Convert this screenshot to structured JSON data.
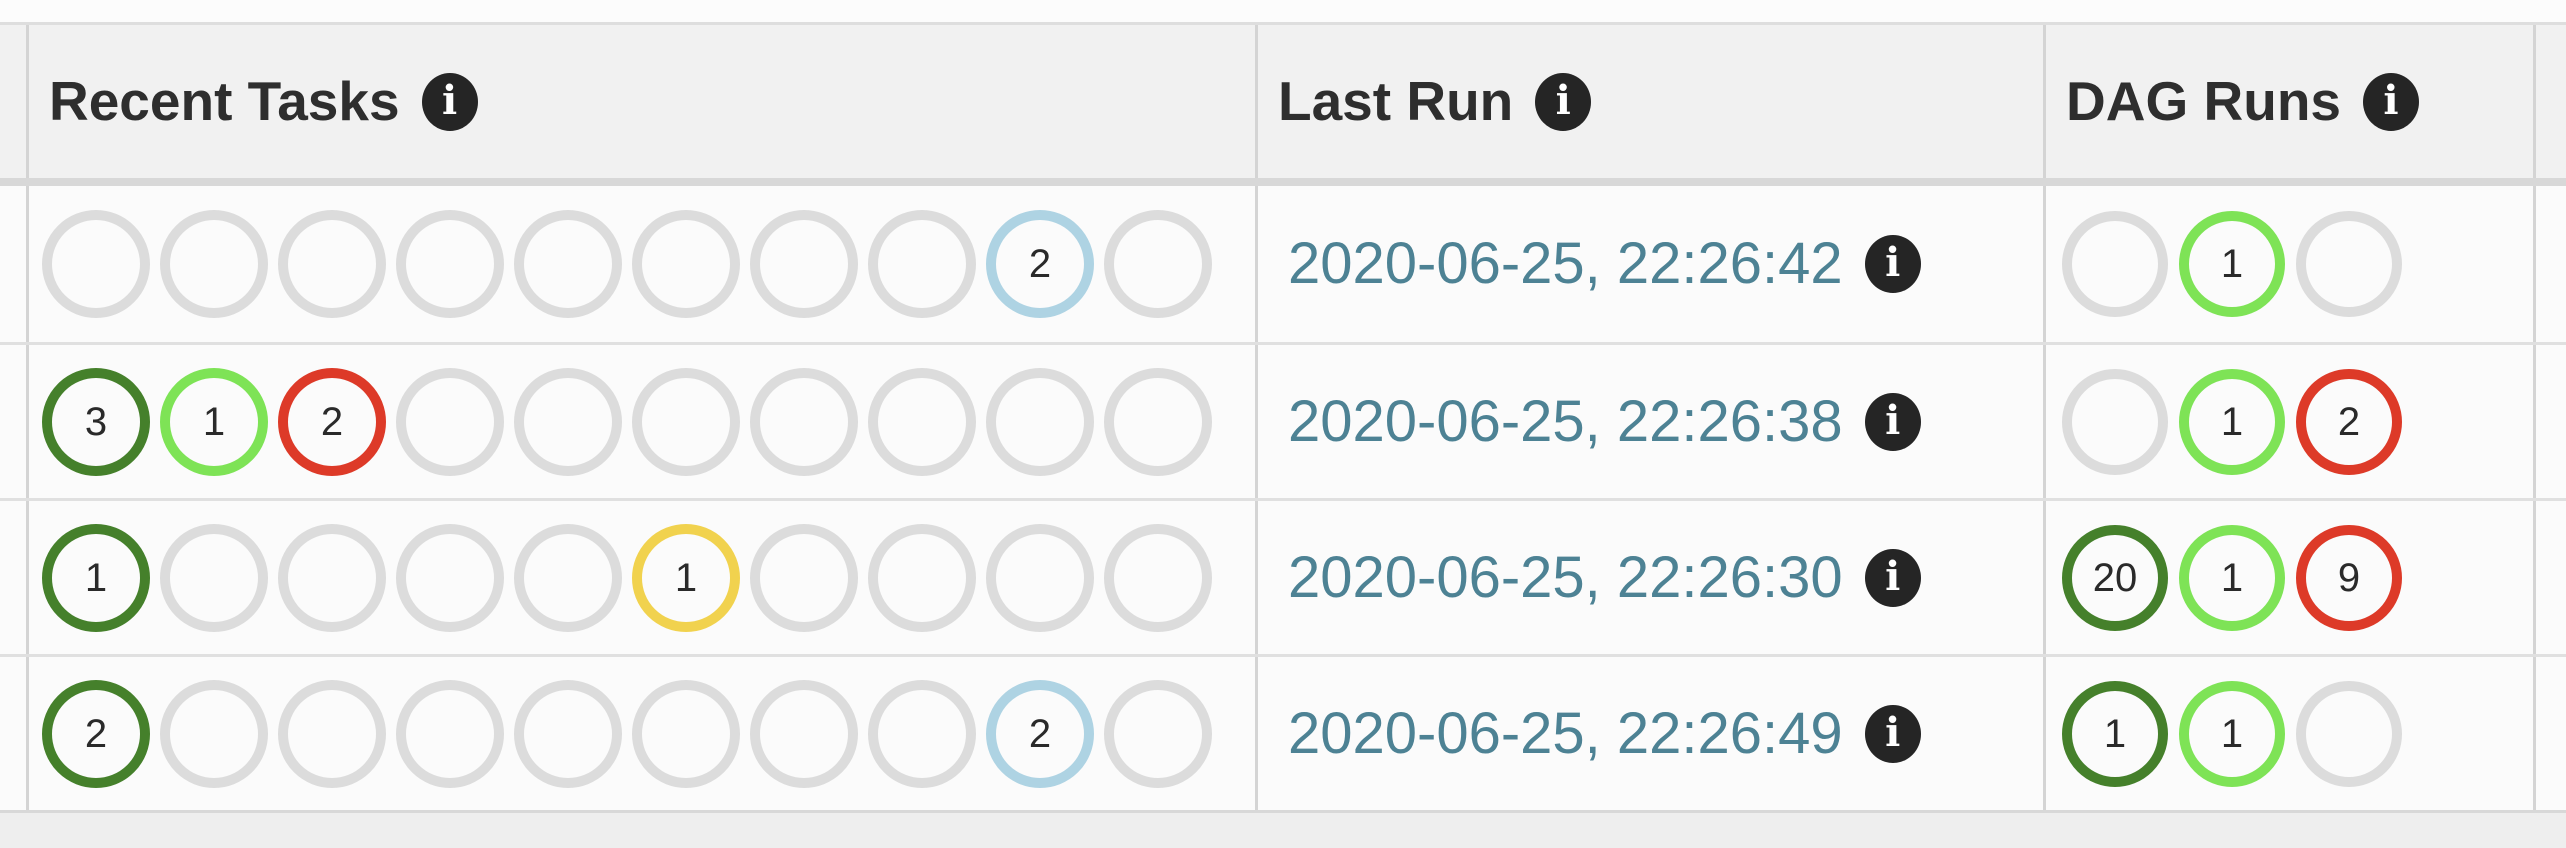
{
  "header": {
    "columns": [
      {
        "key": "recent_tasks",
        "label": "Recent Tasks"
      },
      {
        "key": "last_run",
        "label": "Last Run"
      },
      {
        "key": "dag_runs",
        "label": "DAG Runs"
      }
    ]
  },
  "icons": {
    "info": {
      "name": "info-circle-icon",
      "glyph": "i"
    }
  },
  "ui": {
    "link_color": "#4d8294",
    "header_bg": "#f1f1f1",
    "row_bg": "#fbfbfb",
    "border_color": "#d4d4d4",
    "info_badge_bg": "#252525"
  },
  "state_colors": {
    "empty": "#dcdcdc",
    "success": "#45802b",
    "running": "#7ee356",
    "failed": "#dd3a28",
    "up_for_retry": "#f1d24e",
    "none": "#aed3e3"
  },
  "rows": [
    {
      "recent_tasks": [
        {
          "state": "empty",
          "count": ""
        },
        {
          "state": "empty",
          "count": ""
        },
        {
          "state": "empty",
          "count": ""
        },
        {
          "state": "empty",
          "count": ""
        },
        {
          "state": "empty",
          "count": ""
        },
        {
          "state": "empty",
          "count": ""
        },
        {
          "state": "empty",
          "count": ""
        },
        {
          "state": "empty",
          "count": ""
        },
        {
          "state": "none",
          "count": "2"
        },
        {
          "state": "empty",
          "count": ""
        }
      ],
      "last_run": "2020-06-25, 22:26:42",
      "dag_runs": [
        {
          "state": "empty",
          "count": ""
        },
        {
          "state": "running",
          "count": "1"
        },
        {
          "state": "empty",
          "count": ""
        }
      ]
    },
    {
      "recent_tasks": [
        {
          "state": "success",
          "count": "3"
        },
        {
          "state": "running",
          "count": "1"
        },
        {
          "state": "failed",
          "count": "2"
        },
        {
          "state": "empty",
          "count": ""
        },
        {
          "state": "empty",
          "count": ""
        },
        {
          "state": "empty",
          "count": ""
        },
        {
          "state": "empty",
          "count": ""
        },
        {
          "state": "empty",
          "count": ""
        },
        {
          "state": "empty",
          "count": ""
        },
        {
          "state": "empty",
          "count": ""
        }
      ],
      "last_run": "2020-06-25, 22:26:38",
      "dag_runs": [
        {
          "state": "empty",
          "count": ""
        },
        {
          "state": "running",
          "count": "1"
        },
        {
          "state": "failed",
          "count": "2"
        }
      ]
    },
    {
      "recent_tasks": [
        {
          "state": "success",
          "count": "1"
        },
        {
          "state": "empty",
          "count": ""
        },
        {
          "state": "empty",
          "count": ""
        },
        {
          "state": "empty",
          "count": ""
        },
        {
          "state": "empty",
          "count": ""
        },
        {
          "state": "up_for_retry",
          "count": "1"
        },
        {
          "state": "empty",
          "count": ""
        },
        {
          "state": "empty",
          "count": ""
        },
        {
          "state": "empty",
          "count": ""
        },
        {
          "state": "empty",
          "count": ""
        }
      ],
      "last_run": "2020-06-25, 22:26:30",
      "dag_runs": [
        {
          "state": "success",
          "count": "20"
        },
        {
          "state": "running",
          "count": "1"
        },
        {
          "state": "failed",
          "count": "9"
        }
      ]
    },
    {
      "recent_tasks": [
        {
          "state": "success",
          "count": "2"
        },
        {
          "state": "empty",
          "count": ""
        },
        {
          "state": "empty",
          "count": ""
        },
        {
          "state": "empty",
          "count": ""
        },
        {
          "state": "empty",
          "count": ""
        },
        {
          "state": "empty",
          "count": ""
        },
        {
          "state": "empty",
          "count": ""
        },
        {
          "state": "empty",
          "count": ""
        },
        {
          "state": "none",
          "count": "2"
        },
        {
          "state": "empty",
          "count": ""
        }
      ],
      "last_run": "2020-06-25, 22:26:49",
      "dag_runs": [
        {
          "state": "success",
          "count": "1"
        },
        {
          "state": "running",
          "count": "1"
        },
        {
          "state": "empty",
          "count": ""
        }
      ]
    }
  ]
}
